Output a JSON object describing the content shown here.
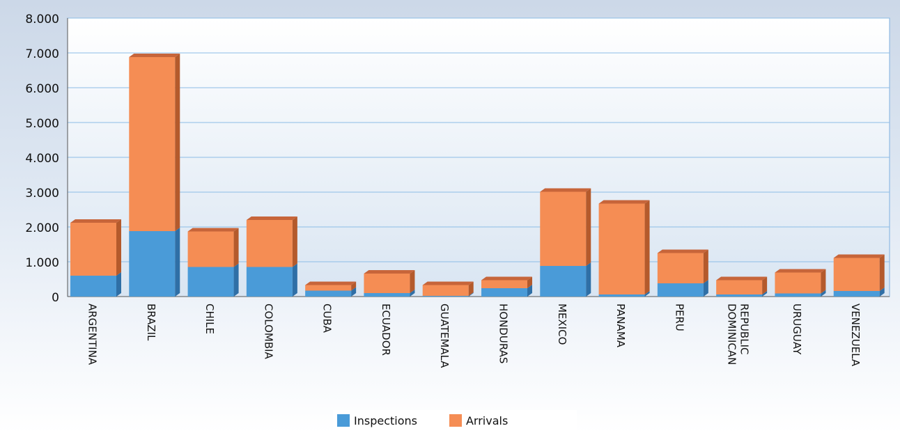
{
  "chart_data": {
    "type": "bar",
    "stacked": true,
    "categories": [
      "ARGENTINA",
      "BRAZIL",
      "CHILE",
      "COLOMBIA",
      "CUBA",
      "ECUADOR",
      "GUATEMALA",
      "HONDURAS",
      "MEXICO",
      "PANAMA",
      "PERU",
      "DOMINICAN REPUBLIC",
      "URUGUAY",
      "VENEZUELA"
    ],
    "series": [
      {
        "name": "Inspections",
        "color": "#4a9bd8",
        "values": [
          600,
          1880,
          850,
          850,
          170,
          100,
          20,
          240,
          880,
          60,
          380,
          60,
          90,
          160
        ]
      },
      {
        "name": "Arrivals",
        "color": "#f58d54",
        "values": [
          1520,
          5000,
          1020,
          1350,
          160,
          560,
          310,
          230,
          2130,
          2610,
          870,
          410,
          600,
          950
        ]
      }
    ],
    "y_ticks": [
      "0",
      "1.000",
      "2.000",
      "3.000",
      "4.000",
      "5.000",
      "6.000",
      "7.000",
      "8.000"
    ],
    "ylim": [
      0,
      8000
    ],
    "grid": true,
    "legend_position": "bottom"
  }
}
